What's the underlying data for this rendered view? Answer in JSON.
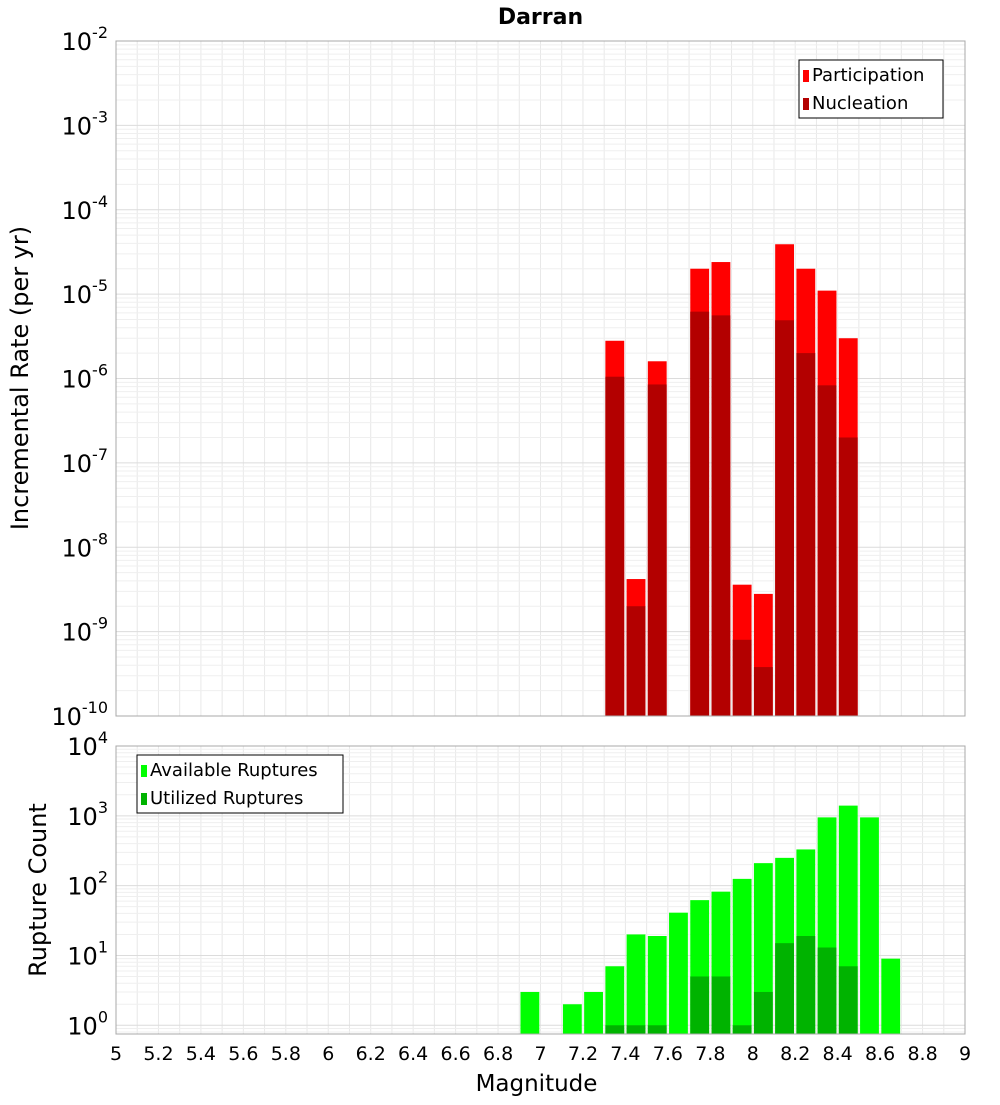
{
  "chart_data": [
    {
      "type": "bar",
      "title": "Darran",
      "xlabel": "",
      "ylabel": "Incremental Rate (per yr)",
      "yscale": "log",
      "ylim": [
        1e-10,
        0.01
      ],
      "xlim": [
        5,
        9
      ],
      "bin_width": 0.1,
      "legend_position": "top-right",
      "grid": true,
      "y_ticks": [
        {
          "base": "10",
          "exp": "-10"
        },
        {
          "base": "10",
          "exp": "-9"
        },
        {
          "base": "10",
          "exp": "-8"
        },
        {
          "base": "10",
          "exp": "-7"
        },
        {
          "base": "10",
          "exp": "-6"
        },
        {
          "base": "10",
          "exp": "-5"
        },
        {
          "base": "10",
          "exp": "-4"
        },
        {
          "base": "10",
          "exp": "-3"
        },
        {
          "base": "10",
          "exp": "-2"
        }
      ],
      "series": [
        {
          "name": "Participation",
          "color": "#ff0000",
          "x": [
            7.35,
            7.45,
            7.55,
            7.75,
            7.85,
            7.95,
            8.05,
            8.15,
            8.25,
            8.35,
            8.45
          ],
          "values": [
            2.8e-06,
            4.2e-09,
            1.6e-06,
            2e-05,
            2.4e-05,
            3.6e-09,
            2.8e-09,
            3.9e-05,
            2e-05,
            1.1e-05,
            3e-06
          ]
        },
        {
          "name": "Nucleation",
          "color": "#b30000",
          "x": [
            7.35,
            7.45,
            7.55,
            7.75,
            7.85,
            7.95,
            8.05,
            8.15,
            8.25,
            8.35,
            8.45
          ],
          "values": [
            1.05e-06,
            2e-09,
            8.5e-07,
            6.2e-06,
            5.6e-06,
            8e-10,
            3.8e-10,
            4.9e-06,
            2e-06,
            8.3e-07,
            2e-07
          ]
        }
      ]
    },
    {
      "type": "bar",
      "title": "",
      "xlabel": "Magnitude",
      "ylabel": "Rupture Count",
      "yscale": "log",
      "ylim": [
        0.75,
        10000
      ],
      "xlim": [
        5,
        9
      ],
      "bin_width": 0.1,
      "legend_position": "top-left",
      "grid": true,
      "y_ticks": [
        {
          "base": "10",
          "exp": "0"
        },
        {
          "base": "10",
          "exp": "1"
        },
        {
          "base": "10",
          "exp": "2"
        },
        {
          "base": "10",
          "exp": "3"
        },
        {
          "base": "10",
          "exp": "4"
        }
      ],
      "x_ticks": [
        "5",
        "5.2",
        "5.4",
        "5.6",
        "5.8",
        "6",
        "6.2",
        "6.4",
        "6.6",
        "6.8",
        "7",
        "7.2",
        "7.4",
        "7.6",
        "7.8",
        "8",
        "8.2",
        "8.4",
        "8.6",
        "8.8",
        "9"
      ],
      "series": [
        {
          "name": "Available Ruptures",
          "color": "#00ff00",
          "x": [
            6.95,
            7.15,
            7.25,
            7.35,
            7.45,
            7.55,
            7.65,
            7.75,
            7.85,
            7.95,
            8.05,
            8.15,
            8.25,
            8.35,
            8.45,
            8.55,
            8.65
          ],
          "values": [
            3,
            2,
            3,
            7,
            20,
            19,
            41,
            62,
            82,
            125,
            210,
            250,
            330,
            950,
            1400,
            950,
            9
          ]
        },
        {
          "name": "Utilized Ruptures",
          "color": "#00b300",
          "x": [
            7.35,
            7.45,
            7.55,
            7.75,
            7.85,
            7.95,
            8.05,
            8.15,
            8.25,
            8.35,
            8.45
          ],
          "values": [
            1,
            1,
            1,
            5,
            5,
            1,
            3,
            15,
            19,
            13,
            7
          ]
        }
      ]
    }
  ]
}
